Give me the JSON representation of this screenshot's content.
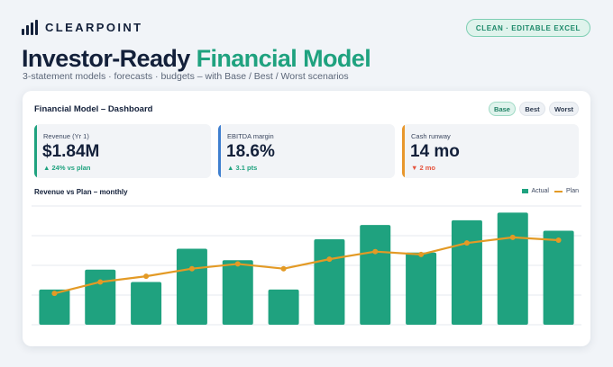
{
  "brand": {
    "name": "CLEARPOINT"
  },
  "badge": {
    "label": "CLEAN · EDITABLE EXCEL"
  },
  "headline": {
    "part1": "Investor-Ready",
    "part2": "Financial Model"
  },
  "subline": "3-statement models · forecasts · budgets – with Base / Best / Worst scenarios",
  "dashboard": {
    "title": "Financial Model – Dashboard",
    "scenarios": [
      "Base",
      "Best",
      "Worst"
    ],
    "active_scenario": "Base"
  },
  "kpis": [
    {
      "label": "Revenue (Yr 1)",
      "value": "$1.84M",
      "delta": "▲ 24% vs plan",
      "accent": "#1fa27f",
      "delta_color": "#1fa27f"
    },
    {
      "label": "EBITDA margin",
      "value": "18.6%",
      "delta": "▲ 3.1 pts",
      "accent": "#3f7fcf",
      "delta_color": "#1fa27f"
    },
    {
      "label": "Cash runway",
      "value": "14 mo",
      "delta": "▼ 2 mo",
      "accent": "#e8972c",
      "delta_color": "#e5533d"
    }
  ],
  "colors": {
    "actual": "#1fa27f",
    "plan": "#e39a25",
    "grid": "#e6eaef"
  },
  "chart_data": {
    "type": "bar",
    "title": "Revenue vs Plan – monthly",
    "series": [
      {
        "name": "Actual",
        "type": "bar",
        "values": [
          37,
          58,
          45,
          80,
          68,
          37,
          90,
          105,
          76,
          110,
          118,
          99
        ]
      },
      {
        "name": "Plan",
        "type": "line",
        "values": [
          33,
          45,
          51,
          59,
          64,
          59,
          69,
          77,
          74,
          86,
          92,
          89
        ]
      }
    ],
    "ylim": [
      0,
      125
    ],
    "grid": true,
    "legend": "top-right"
  }
}
